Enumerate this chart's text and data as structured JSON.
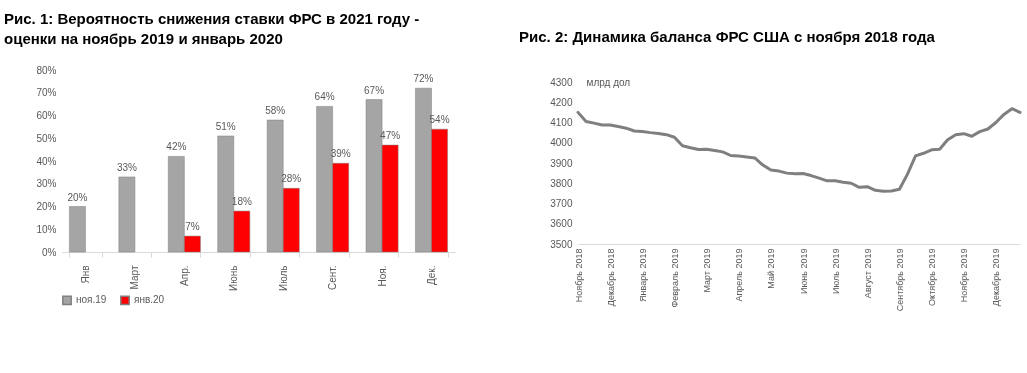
{
  "chart_data": [
    {
      "type": "bar",
      "title": "Рис. 1: Вероятность снижения ставки ФРС в 2021 году - оценки на ноябрь 2019 и январь 2020",
      "categories": [
        "Янв",
        "Март",
        "Апр.",
        "Июнь",
        "Июль",
        "Сент.",
        "Ноя.",
        "Дек."
      ],
      "series": [
        {
          "name": "ноя.19",
          "color": "#a5a5a5",
          "values": [
            20,
            33,
            42,
            51,
            58,
            64,
            67,
            72
          ],
          "value_labels": [
            "20%",
            "33%",
            "42%",
            "51%",
            "58%",
            "64%",
            "67%",
            "72%"
          ]
        },
        {
          "name": "янв.20",
          "color": "#ff0000",
          "values": [
            null,
            null,
            7,
            18,
            28,
            39,
            47,
            54
          ],
          "value_labels": [
            null,
            null,
            "7%",
            "18%",
            "28%",
            "39%",
            "47%",
            "54%"
          ]
        }
      ],
      "ylim": [
        0,
        80
      ],
      "yticks": [
        {
          "value": 0,
          "label": "0%"
        },
        {
          "value": 10,
          "label": "10%"
        },
        {
          "value": 20,
          "label": "20%"
        },
        {
          "value": 30,
          "label": "30%"
        },
        {
          "value": 40,
          "label": "40%"
        },
        {
          "value": 50,
          "label": "50%"
        },
        {
          "value": 60,
          "label": "60%"
        },
        {
          "value": 70,
          "label": "70%"
        },
        {
          "value": 80,
          "label": "80%"
        }
      ],
      "legend": "bottom"
    },
    {
      "type": "line",
      "title": "Рис. 2: Динамика баланса ФРС США с ноября 2018 года",
      "ylabel": "млрд дол",
      "categories": [
        "Ноябрь 2018",
        null,
        null,
        null,
        "Декабрь 2018",
        null,
        null,
        null,
        "Январь 2019",
        null,
        null,
        null,
        "Февраль 2019",
        null,
        null,
        null,
        "Март 2019",
        null,
        null,
        null,
        "Апрель 2019",
        null,
        null,
        null,
        "Май 2019",
        null,
        null,
        null,
        "Июнь 2019",
        null,
        null,
        null,
        "Июль 2019",
        null,
        null,
        null,
        "Август 2019",
        null,
        null,
        null,
        "Сентябрь 2019",
        null,
        null,
        null,
        "Октябрь 2019",
        null,
        null,
        null,
        "Ноябрь 2019",
        null,
        null,
        null,
        "Декабрь 2019",
        null,
        null,
        null
      ],
      "series": [
        {
          "color": "#7f7f7f",
          "values": [
            4150,
            4105,
            4097,
            4088,
            4088,
            4080,
            4072,
            4058,
            4055,
            4050,
            4046,
            4040,
            4027,
            3985,
            3975,
            3967,
            3968,
            3962,
            3955,
            3937,
            3935,
            3930,
            3925,
            3890,
            3865,
            3860,
            3850,
            3847,
            3848,
            3838,
            3825,
            3812,
            3812,
            3805,
            3800,
            3780,
            3783,
            3765,
            3760,
            3762,
            3770,
            3845,
            3935,
            3948,
            3965,
            3968,
            4015,
            4040,
            4045,
            4032,
            4055,
            4068,
            4100,
            4140,
            4168,
            4150
          ]
        }
      ],
      "ylim": [
        3500,
        4300
      ],
      "yticks": [
        3500,
        3600,
        3700,
        3800,
        3900,
        4000,
        4100,
        4200,
        4300
      ]
    }
  ]
}
